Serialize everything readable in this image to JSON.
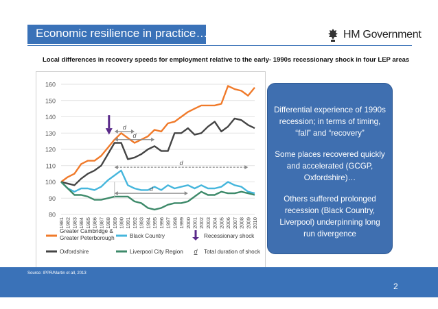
{
  "slide": {
    "title": "Economic resilience in practice…",
    "logo_text": "HM Government",
    "subtitle": "Local differences in recovery speeds for employment relative to the early- 1990s recessionary shock in four LEP areas",
    "source": "Source: IPPR/Martin et all, 2013",
    "page_number": "2",
    "callout": {
      "para1": "Differential experience of 1990s recession; in terms of timing, “fall” and “recovery”",
      "para2": "Some places recovered quickly and accelerated (GCGP, Oxfordshire)…",
      "para3": "Others suffered prolonged recession (Black Country, Liverpool) underpinning long run divergence"
    },
    "colors": {
      "accent": "#3a72b8",
      "callout": "#3f6fb0"
    }
  },
  "chart_data": {
    "type": "line",
    "x": [
      "1981",
      "1982",
      "1983",
      "1984",
      "1985",
      "1986",
      "1987",
      "1988",
      "1989",
      "1990",
      "1991",
      "1992",
      "1993",
      "1994",
      "1995",
      "1996",
      "1997",
      "1998",
      "1999",
      "2000",
      "2001",
      "2002",
      "2003",
      "2004",
      "2005",
      "2006",
      "2007",
      "2008",
      "2009",
      "2010"
    ],
    "ylim": [
      80,
      160
    ],
    "yticks": [
      "80",
      "90",
      "100",
      "110",
      "120",
      "130",
      "140",
      "150",
      "160"
    ],
    "grid": true,
    "series": [
      {
        "name": "Greater Cambridge & Greater Peterborough",
        "color": "#f07a2a",
        "values": [
          100,
          103,
          105,
          111,
          113,
          113,
          116,
          121,
          126,
          130,
          127,
          124,
          126,
          128,
          132,
          131,
          136,
          137,
          140,
          143,
          145,
          147,
          147,
          147,
          148,
          159,
          157,
          156,
          153,
          158
        ]
      },
      {
        "name": "Oxfordshire",
        "color": "#444444",
        "values": [
          100,
          99,
          98,
          102,
          105,
          107,
          110,
          117,
          124,
          124,
          114,
          115,
          117,
          120,
          122,
          119,
          119,
          130,
          130,
          133,
          129,
          130,
          134,
          137,
          131,
          134,
          139,
          138,
          135,
          133
        ]
      },
      {
        "name": "Black Country",
        "color": "#45b6dc",
        "values": [
          100,
          96,
          94,
          96,
          96,
          95,
          97,
          101,
          104,
          107,
          98,
          96,
          95,
          95,
          97,
          95,
          98,
          96,
          97,
          98,
          96,
          98,
          96,
          96,
          97,
          100,
          98,
          97,
          94,
          93
        ]
      },
      {
        "name": "Liverpool City Region",
        "color": "#3e8a6a",
        "values": [
          100,
          96,
          92,
          92,
          91,
          89,
          89,
          90,
          91,
          91,
          91,
          88,
          87,
          84,
          83,
          84,
          86,
          87,
          87,
          88,
          91,
          94,
          92,
          92,
          94,
          93,
          93,
          94,
          93,
          92
        ]
      }
    ],
    "legend": [
      {
        "label": "Greater Cambridge & Greater Peterborough",
        "color": "#f07a2a",
        "kind": "line"
      },
      {
        "label": "Black Country",
        "color": "#45b6dc",
        "kind": "line"
      },
      {
        "label": "Recessionary shock",
        "color": "#5a2a8a",
        "kind": "arrow"
      },
      {
        "label": "Oxfordshire",
        "color": "#444444",
        "kind": "line"
      },
      {
        "label": "Liverpool City Region",
        "color": "#3e8a6a",
        "kind": "line"
      },
      {
        "label": "Total duration of shock",
        "color": "#555555",
        "kind": "d"
      }
    ],
    "legend_placement": "bottom",
    "annotations": {
      "duration_label": "d",
      "shock_year": "1989",
      "durations": [
        {
          "series": "Greater Cambridge & Greater Peterborough",
          "from": "1989",
          "to": "1992",
          "level": 131
        },
        {
          "series": "Greater Cambridge & Greater Peterborough",
          "from": "1989",
          "to": "1995",
          "level": 126
        },
        {
          "series": "Oxfordshire",
          "from": "1989",
          "to": "2009",
          "level": 109
        },
        {
          "series": "Black Country",
          "from": "1989",
          "to": "2000",
          "level": 93
        }
      ]
    }
  }
}
